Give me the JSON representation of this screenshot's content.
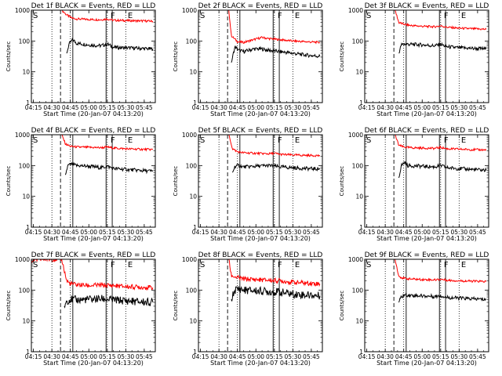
{
  "figure": {
    "rows": 3,
    "cols": 3,
    "colors": {
      "events": "#000000",
      "lld": "#ff0000",
      "axes": "#000000",
      "background": "#ffffff"
    }
  },
  "chart_data": [
    {
      "type": "line",
      "title": "Det 1f BLACK = Events, RED = LLD",
      "xlabel": "Start Time (20-Jan-07 04:13:20)",
      "ylabel": "Counts/sec",
      "yscale": "log",
      "ylim": [
        1,
        1000
      ],
      "xlim": [
        "04:13:20",
        "05:54:00"
      ],
      "xticks": [
        "04:15",
        "04:30",
        "04:45",
        "05:00",
        "05:15",
        "05:30",
        "05:45"
      ],
      "yticks": [
        "1",
        "10",
        "100",
        "1000"
      ],
      "markers": [
        {
          "label": "S",
          "time": "04:14"
        },
        {
          "label": "F",
          "time": "05:17"
        },
        {
          "label": "E",
          "time": "05:31"
        }
      ],
      "vlines_dotted": [
        "04:30",
        "04:45",
        "05:15",
        "05:30"
      ],
      "vlines_dashed": [
        "04:37"
      ],
      "vlines_solid": [
        "04:47",
        "05:14",
        "05:19"
      ],
      "series": [
        {
          "name": "LLD",
          "color": "#ff0000",
          "x": [
            "04:38",
            "04:42",
            "04:46",
            "04:50",
            "05:00",
            "05:10",
            "05:15",
            "05:20",
            "05:30",
            "05:40",
            "05:52"
          ],
          "values": [
            1000,
            700,
            560,
            520,
            500,
            490,
            520,
            470,
            460,
            450,
            440
          ]
        },
        {
          "name": "Events",
          "color": "#000000",
          "x": [
            "04:42",
            "04:44",
            "04:47",
            "04:50",
            "05:00",
            "05:10",
            "05:15",
            "05:20",
            "05:30",
            "05:40",
            "05:52"
          ],
          "values": [
            40,
            80,
            110,
            85,
            75,
            70,
            80,
            62,
            60,
            58,
            55
          ]
        }
      ]
    },
    {
      "type": "line",
      "title": "Det 2f BLACK = Events, RED = LLD",
      "xlabel": "Start Time (20-Jan-07 04:13:20)",
      "ylabel": "Counts/sec",
      "yscale": "log",
      "ylim": [
        1,
        1000
      ],
      "xlim": [
        "04:13:20",
        "05:54:00"
      ],
      "xticks": [
        "04:15",
        "04:30",
        "04:45",
        "05:00",
        "05:15",
        "05:30",
        "05:45"
      ],
      "yticks": [
        "1",
        "10",
        "100",
        "1000"
      ],
      "markers": [
        {
          "label": "S",
          "time": "04:14"
        },
        {
          "label": "F",
          "time": "05:17"
        },
        {
          "label": "E",
          "time": "05:31"
        }
      ],
      "vlines_dotted": [
        "04:30",
        "04:45",
        "05:15",
        "05:30"
      ],
      "vlines_dashed": [
        "04:37"
      ],
      "vlines_solid": [
        "04:47",
        "05:14",
        "05:19"
      ],
      "series": [
        {
          "name": "LLD",
          "color": "#ff0000",
          "x": [
            "04:38",
            "04:40",
            "04:45",
            "04:50",
            "04:58",
            "05:05",
            "05:10",
            "05:20",
            "05:30",
            "05:40",
            "05:52"
          ],
          "values": [
            1000,
            150,
            95,
            90,
            110,
            130,
            120,
            110,
            100,
            95,
            90
          ]
        },
        {
          "name": "Events",
          "color": "#000000",
          "x": [
            "04:40",
            "04:43",
            "04:46",
            "04:50",
            "04:58",
            "05:05",
            "05:10",
            "05:20",
            "05:30",
            "05:40",
            "05:52"
          ],
          "values": [
            20,
            65,
            50,
            45,
            55,
            55,
            50,
            45,
            40,
            35,
            32
          ]
        }
      ]
    },
    {
      "type": "line",
      "title": "Det 3f BLACK = Events, RED = LLD",
      "xlabel": "Start Time (20-Jan-07 04:13:20)",
      "ylabel": "Counts/sec",
      "yscale": "log",
      "ylim": [
        1,
        1000
      ],
      "xlim": [
        "04:13:20",
        "05:54:00"
      ],
      "xticks": [
        "04:15",
        "04:30",
        "04:45",
        "05:00",
        "05:15",
        "05:30",
        "05:45"
      ],
      "yticks": [
        "1",
        "10",
        "100",
        "1000"
      ],
      "markers": [
        {
          "label": "S",
          "time": "04:14"
        },
        {
          "label": "F",
          "time": "05:17"
        },
        {
          "label": "E",
          "time": "05:31"
        }
      ],
      "vlines_dotted": [
        "04:30",
        "04:45",
        "05:15",
        "05:30"
      ],
      "vlines_dashed": [
        "04:37"
      ],
      "vlines_solid": [
        "04:47",
        "05:14",
        "05:19"
      ],
      "series": [
        {
          "name": "LLD",
          "color": "#ff0000",
          "x": [
            "04:38",
            "04:41",
            "04:45",
            "04:50",
            "05:00",
            "05:10",
            "05:15",
            "05:20",
            "05:30",
            "05:40",
            "05:52"
          ],
          "values": [
            1000,
            400,
            350,
            320,
            300,
            290,
            310,
            280,
            260,
            250,
            240
          ]
        },
        {
          "name": "Events",
          "color": "#000000",
          "x": [
            "04:41",
            "04:43",
            "04:46",
            "04:50",
            "05:00",
            "05:10",
            "05:15",
            "05:20",
            "05:30",
            "05:40",
            "05:52"
          ],
          "values": [
            40,
            75,
            80,
            78,
            75,
            70,
            78,
            65,
            60,
            58,
            55
          ]
        }
      ]
    },
    {
      "type": "line",
      "title": "Det 4f BLACK = Events, RED = LLD",
      "xlabel": "Start Time (20-Jan-07 04:13:20)",
      "ylabel": "Counts/sec",
      "yscale": "log",
      "ylim": [
        1,
        1000
      ],
      "xlim": [
        "04:13:20",
        "05:54:00"
      ],
      "xticks": [
        "04:15",
        "04:30",
        "04:45",
        "05:00",
        "05:15",
        "05:30",
        "05:45"
      ],
      "yticks": [
        "1",
        "10",
        "100",
        "1000"
      ],
      "markers": [
        {
          "label": "S",
          "time": "04:14"
        },
        {
          "label": "F",
          "time": "05:17"
        },
        {
          "label": "E",
          "time": "05:31"
        }
      ],
      "vlines_dotted": [
        "04:30",
        "04:45",
        "05:15",
        "05:30"
      ],
      "vlines_dashed": [
        "04:37"
      ],
      "vlines_solid": [
        "04:47",
        "05:14",
        "05:19"
      ],
      "series": [
        {
          "name": "LLD",
          "color": "#ff0000",
          "x": [
            "04:38",
            "04:41",
            "04:45",
            "04:50",
            "05:00",
            "05:10",
            "05:15",
            "05:20",
            "05:30",
            "05:40",
            "05:52"
          ],
          "values": [
            1000,
            500,
            420,
            400,
            390,
            380,
            400,
            370,
            350,
            340,
            330
          ]
        },
        {
          "name": "Events",
          "color": "#000000",
          "x": [
            "04:41",
            "04:43",
            "04:46",
            "04:50",
            "05:00",
            "05:10",
            "05:15",
            "05:20",
            "05:30",
            "05:40",
            "05:52"
          ],
          "values": [
            50,
            100,
            110,
            100,
            95,
            85,
            95,
            80,
            75,
            70,
            65
          ]
        }
      ]
    },
    {
      "type": "line",
      "title": "Det 5f BLACK = Events, RED = LLD",
      "xlabel": "Start Time (20-Jan-07 04:13:20)",
      "ylabel": "Counts/sec",
      "yscale": "log",
      "ylim": [
        1,
        1000
      ],
      "xlim": [
        "04:13:20",
        "05:54:00"
      ],
      "xticks": [
        "04:15",
        "04:30",
        "04:45",
        "05:00",
        "05:15",
        "05:30",
        "05:45"
      ],
      "yticks": [
        "1",
        "10",
        "100",
        "1000"
      ],
      "markers": [
        {
          "label": "S",
          "time": "04:14"
        },
        {
          "label": "F",
          "time": "05:17"
        },
        {
          "label": "E",
          "time": "05:31"
        }
      ],
      "vlines_dotted": [
        "04:30",
        "04:45",
        "05:15",
        "05:30"
      ],
      "vlines_dashed": [
        "04:37"
      ],
      "vlines_solid": [
        "04:47",
        "05:14",
        "05:19"
      ],
      "series": [
        {
          "name": "LLD",
          "color": "#ff0000",
          "x": [
            "04:38",
            "04:41",
            "04:45",
            "04:50",
            "05:00",
            "05:10",
            "05:15",
            "05:20",
            "05:30",
            "05:40",
            "05:52"
          ],
          "values": [
            1000,
            350,
            280,
            260,
            250,
            240,
            250,
            230,
            220,
            215,
            210
          ]
        },
        {
          "name": "Events",
          "color": "#000000",
          "x": [
            "04:41",
            "04:43",
            "04:46",
            "04:50",
            "05:00",
            "05:10",
            "05:15",
            "05:20",
            "05:30",
            "05:40",
            "05:52"
          ],
          "values": [
            60,
            95,
            100,
            90,
            95,
            100,
            95,
            90,
            85,
            80,
            78
          ]
        }
      ]
    },
    {
      "type": "line",
      "title": "Det 6f BLACK = Events, RED = LLD",
      "xlabel": "Start Time (20-Jan-07 04:13:20)",
      "ylabel": "Counts/sec",
      "yscale": "log",
      "ylim": [
        1,
        1000
      ],
      "xlim": [
        "04:13:20",
        "05:54:00"
      ],
      "xticks": [
        "04:15",
        "04:30",
        "04:45",
        "05:00",
        "05:15",
        "05:30",
        "05:45"
      ],
      "yticks": [
        "1",
        "10",
        "100",
        "1000"
      ],
      "markers": [
        {
          "label": "S",
          "time": "04:14"
        },
        {
          "label": "F",
          "time": "05:17"
        },
        {
          "label": "E",
          "time": "05:31"
        }
      ],
      "vlines_dotted": [
        "04:30",
        "04:45",
        "05:15",
        "05:30"
      ],
      "vlines_dashed": [
        "04:37"
      ],
      "vlines_solid": [
        "04:47",
        "05:14",
        "05:19"
      ],
      "series": [
        {
          "name": "LLD",
          "color": "#ff0000",
          "x": [
            "04:38",
            "04:41",
            "04:45",
            "04:50",
            "05:00",
            "05:10",
            "05:15",
            "05:20",
            "05:30",
            "05:40",
            "05:52"
          ],
          "values": [
            1000,
            450,
            400,
            380,
            370,
            360,
            390,
            350,
            340,
            330,
            320
          ]
        },
        {
          "name": "Events",
          "color": "#000000",
          "x": [
            "04:41",
            "04:43",
            "04:46",
            "04:48",
            "05:00",
            "05:10",
            "05:15",
            "05:20",
            "05:30",
            "05:40",
            "05:52"
          ],
          "values": [
            40,
            100,
            130,
            100,
            95,
            90,
            100,
            85,
            80,
            75,
            70
          ]
        }
      ]
    },
    {
      "type": "line",
      "title": "Det 7f BLACK = Events, RED = LLD",
      "xlabel": "Start Time (20-Jan-07 04:13:20)",
      "ylabel": "Counts/sec",
      "yscale": "log",
      "ylim": [
        1,
        1000
      ],
      "xlim": [
        "04:13:20",
        "05:54:00"
      ],
      "xticks": [
        "04:15",
        "04:30",
        "04:45",
        "05:00",
        "05:15",
        "05:30",
        "05:45"
      ],
      "yticks": [
        "1",
        "10",
        "100",
        "1000"
      ],
      "markers": [
        {
          "label": "S",
          "time": "04:14"
        },
        {
          "label": "F",
          "time": "05:17"
        },
        {
          "label": "E",
          "time": "05:31"
        }
      ],
      "vlines_dotted": [
        "04:30",
        "04:45",
        "05:15",
        "05:30"
      ],
      "vlines_dashed": [
        "04:37"
      ],
      "vlines_solid": [
        "04:47",
        "05:14",
        "05:19"
      ],
      "series": [
        {
          "name": "LLD",
          "color": "#ff0000",
          "x": [
            "04:13:20",
            "04:20",
            "04:28",
            "04:30",
            "04:38",
            "04:42",
            "04:45",
            "04:50",
            "05:00",
            "05:10",
            "05:20",
            "05:30",
            "05:40",
            "05:52"
          ],
          "values": [
            900,
            1000,
            1000,
            1000,
            1000,
            200,
            160,
            150,
            140,
            145,
            140,
            130,
            125,
            120
          ]
        },
        {
          "name": "Events",
          "color": "#000000",
          "x": [
            "04:40",
            "04:42",
            "04:45",
            "04:50",
            "05:00",
            "05:10",
            "05:20",
            "05:30",
            "05:40",
            "05:52"
          ],
          "values": [
            30,
            45,
            50,
            48,
            50,
            52,
            48,
            45,
            42,
            40
          ]
        }
      ]
    },
    {
      "type": "line",
      "title": "Det 8f BLACK = Events, RED = LLD",
      "xlabel": "Start Time (20-Jan-07 04:13:20)",
      "ylabel": "Counts/sec",
      "yscale": "log",
      "ylim": [
        1,
        1000
      ],
      "xlim": [
        "04:13:20",
        "05:54:00"
      ],
      "xticks": [
        "04:15",
        "04:30",
        "04:45",
        "05:00",
        "05:15",
        "05:30",
        "05:45"
      ],
      "yticks": [
        "1",
        "10",
        "100",
        "1000"
      ],
      "markers": [
        {
          "label": "S",
          "time": "04:14"
        },
        {
          "label": "F",
          "time": "05:17"
        },
        {
          "label": "E",
          "time": "05:31"
        }
      ],
      "vlines_dotted": [
        "04:30",
        "04:45",
        "05:15",
        "05:30"
      ],
      "vlines_dashed": [
        "04:37"
      ],
      "vlines_solid": [
        "04:47",
        "05:14",
        "05:19"
      ],
      "series": [
        {
          "name": "LLD",
          "color": "#ff0000",
          "x": [
            "04:38",
            "04:40",
            "04:45",
            "04:50",
            "05:00",
            "05:10",
            "05:20",
            "05:30",
            "05:40",
            "05:52"
          ],
          "values": [
            1000,
            300,
            250,
            230,
            220,
            210,
            200,
            180,
            170,
            160
          ]
        },
        {
          "name": "Events",
          "color": "#000000",
          "x": [
            "04:40",
            "04:43",
            "04:46",
            "04:50",
            "05:00",
            "05:10",
            "05:20",
            "05:30",
            "05:40",
            "05:52"
          ],
          "values": [
            50,
            100,
            110,
            100,
            95,
            90,
            85,
            75,
            70,
            65
          ]
        }
      ]
    },
    {
      "type": "line",
      "title": "Det 9f BLACK = Events, RED = LLD",
      "xlabel": "Start Time (20-Jan-07 04:13:20)",
      "ylabel": "Counts/sec",
      "yscale": "log",
      "ylim": [
        1,
        1000
      ],
      "xlim": [
        "04:13:20",
        "05:54:00"
      ],
      "xticks": [
        "04:15",
        "04:30",
        "04:45",
        "05:00",
        "05:15",
        "05:30",
        "05:45"
      ],
      "yticks": [
        "1",
        "10",
        "100",
        "1000"
      ],
      "markers": [
        {
          "label": "S",
          "time": "04:14"
        },
        {
          "label": "F",
          "time": "05:17"
        },
        {
          "label": "E",
          "time": "05:31"
        }
      ],
      "vlines_dotted": [
        "04:30",
        "04:45",
        "05:15",
        "05:30"
      ],
      "vlines_dashed": [
        "04:37"
      ],
      "vlines_solid": [
        "04:47",
        "05:14",
        "05:19"
      ],
      "series": [
        {
          "name": "LLD",
          "color": "#ff0000",
          "x": [
            "04:38",
            "04:41",
            "04:45",
            "04:50",
            "05:00",
            "05:10",
            "05:15",
            "05:20",
            "05:30",
            "05:40",
            "05:52"
          ],
          "values": [
            1000,
            280,
            240,
            230,
            220,
            215,
            225,
            210,
            200,
            195,
            190
          ]
        },
        {
          "name": "Events",
          "color": "#000000",
          "x": [
            "04:41",
            "04:43",
            "04:46",
            "04:50",
            "05:00",
            "05:10",
            "05:15",
            "05:20",
            "05:30",
            "05:40",
            "05:52"
          ],
          "values": [
            40,
            60,
            70,
            68,
            65,
            62,
            66,
            58,
            55,
            52,
            50
          ]
        }
      ]
    }
  ]
}
